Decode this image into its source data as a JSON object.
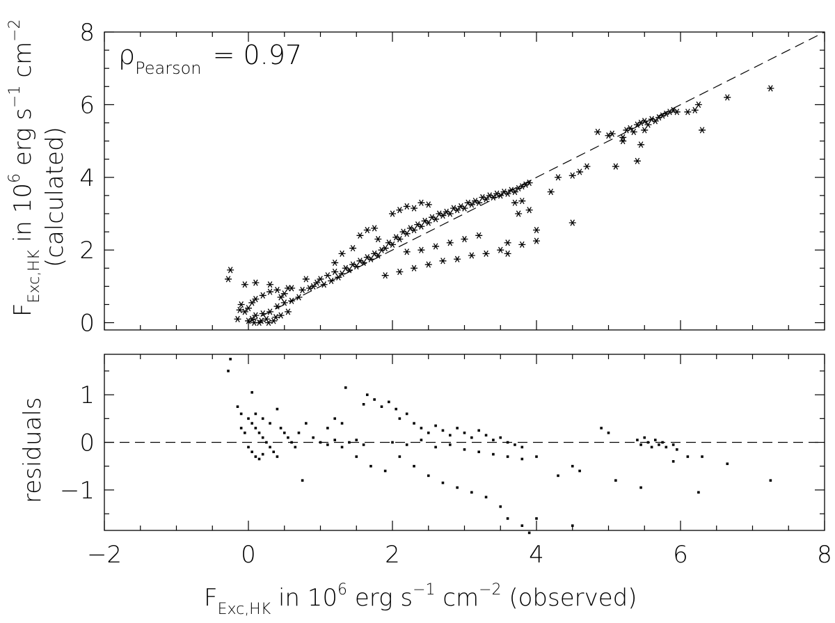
{
  "chart_data": [
    {
      "id": "top",
      "type": "scatter",
      "marker": "asterisk",
      "xlim": [
        -2,
        8
      ],
      "ylim": [
        -0.2,
        8
      ],
      "yticks": [
        0,
        2,
        4,
        6,
        8
      ],
      "reference_line": "y = x (dashed)",
      "ylabel": {
        "main": "F",
        "sub": "Exc,HK",
        "rest1": " in 10",
        "sup1": "6",
        "rest2": " erg s",
        "sup2": "−1",
        "rest3": " cm",
        "sup3": "−2",
        "line2": "(calculated)"
      },
      "annotation": {
        "symbol": "ρ",
        "sub": "Pearson",
        "text": " = 0.97"
      },
      "points": [
        [
          -0.25,
          1.45
        ],
        [
          -0.28,
          1.2
        ],
        [
          -0.05,
          1.05
        ],
        [
          0.1,
          1.1
        ],
        [
          0.3,
          1.05
        ],
        [
          0.6,
          0.95
        ],
        [
          0.0,
          0.05
        ],
        [
          0.05,
          0.1
        ],
        [
          0.1,
          0.2
        ],
        [
          0.15,
          0.0
        ],
        [
          0.2,
          0.25
        ],
        [
          0.25,
          0.1
        ],
        [
          0.3,
          0.3
        ],
        [
          0.35,
          0.05
        ],
        [
          0.4,
          0.45
        ],
        [
          0.45,
          0.2
        ],
        [
          0.5,
          0.55
        ],
        [
          0.55,
          0.3
        ],
        [
          -0.1,
          0.5
        ],
        [
          -0.05,
          0.3
        ],
        [
          0.0,
          0.4
        ],
        [
          0.05,
          0.55
        ],
        [
          0.1,
          0.65
        ],
        [
          0.2,
          0.75
        ],
        [
          0.3,
          0.85
        ],
        [
          0.4,
          0.9
        ],
        [
          0.45,
          0.7
        ],
        [
          0.5,
          0.8
        ],
        [
          0.55,
          0.95
        ],
        [
          0.6,
          0.6
        ],
        [
          -0.15,
          0.1
        ],
        [
          -0.12,
          0.35
        ],
        [
          0.08,
          0.0
        ],
        [
          0.18,
          0.05
        ],
        [
          0.28,
          0.0
        ],
        [
          0.38,
          0.15
        ],
        [
          0.7,
          0.7
        ],
        [
          0.75,
          0.9
        ],
        [
          0.8,
          1.2
        ],
        [
          0.85,
          0.95
        ],
        [
          0.9,
          1.0
        ],
        [
          0.95,
          1.1
        ],
        [
          1.0,
          1.2
        ],
        [
          1.05,
          1.05
        ],
        [
          1.1,
          1.3
        ],
        [
          1.15,
          1.15
        ],
        [
          1.2,
          1.4
        ],
        [
          1.25,
          1.25
        ],
        [
          1.3,
          1.35
        ],
        [
          1.35,
          1.5
        ],
        [
          1.4,
          1.45
        ],
        [
          1.45,
          1.6
        ],
        [
          1.5,
          1.55
        ],
        [
          1.55,
          1.7
        ],
        [
          1.6,
          1.65
        ],
        [
          1.65,
          1.8
        ],
        [
          1.7,
          1.75
        ],
        [
          1.75,
          1.9
        ],
        [
          1.8,
          1.85
        ],
        [
          1.85,
          2.0
        ],
        [
          1.2,
          1.65
        ],
        [
          1.3,
          1.9
        ],
        [
          1.45,
          2.05
        ],
        [
          1.55,
          2.4
        ],
        [
          1.65,
          2.55
        ],
        [
          1.75,
          2.6
        ],
        [
          1.8,
          2.3
        ],
        [
          1.9,
          2.05
        ],
        [
          1.95,
          2.2
        ],
        [
          2.0,
          2.15
        ],
        [
          2.05,
          2.35
        ],
        [
          2.1,
          2.3
        ],
        [
          2.15,
          2.5
        ],
        [
          2.2,
          2.45
        ],
        [
          2.25,
          2.6
        ],
        [
          2.3,
          2.55
        ],
        [
          2.35,
          2.7
        ],
        [
          2.4,
          2.65
        ],
        [
          2.45,
          2.8
        ],
        [
          2.5,
          2.75
        ],
        [
          2.55,
          2.9
        ],
        [
          2.6,
          2.85
        ],
        [
          2.65,
          3.0
        ],
        [
          2.7,
          2.95
        ],
        [
          2.75,
          3.05
        ],
        [
          2.8,
          3.0
        ],
        [
          2.85,
          3.15
        ],
        [
          2.9,
          3.1
        ],
        [
          2.95,
          3.2
        ],
        [
          3.0,
          3.15
        ],
        [
          3.05,
          3.3
        ],
        [
          3.1,
          3.25
        ],
        [
          3.15,
          3.35
        ],
        [
          3.2,
          3.3
        ],
        [
          3.25,
          3.45
        ],
        [
          3.3,
          3.4
        ],
        [
          3.35,
          3.5
        ],
        [
          3.4,
          3.45
        ],
        [
          3.45,
          3.55
        ],
        [
          3.5,
          3.5
        ],
        [
          3.55,
          3.6
        ],
        [
          3.6,
          3.55
        ],
        [
          3.65,
          3.65
        ],
        [
          3.7,
          3.6
        ],
        [
          3.75,
          3.7
        ],
        [
          3.8,
          3.75
        ],
        [
          3.85,
          3.8
        ],
        [
          3.9,
          3.85
        ],
        [
          2.0,
          3.0
        ],
        [
          2.1,
          3.1
        ],
        [
          2.2,
          3.2
        ],
        [
          2.3,
          3.15
        ],
        [
          2.4,
          3.3
        ],
        [
          2.5,
          3.25
        ],
        [
          2.2,
          1.95
        ],
        [
          2.4,
          2.0
        ],
        [
          2.6,
          2.1
        ],
        [
          2.8,
          2.2
        ],
        [
          3.0,
          2.3
        ],
        [
          3.2,
          2.4
        ],
        [
          2.5,
          1.6
        ],
        [
          2.7,
          1.7
        ],
        [
          2.9,
          1.75
        ],
        [
          3.1,
          1.85
        ],
        [
          3.3,
          1.9
        ],
        [
          3.5,
          2.0
        ],
        [
          2.1,
          1.4
        ],
        [
          2.3,
          1.5
        ],
        [
          1.9,
          1.3
        ],
        [
          3.6,
          1.9
        ],
        [
          3.6,
          2.2
        ],
        [
          3.8,
          2.15
        ],
        [
          4.0,
          2.55
        ],
        [
          4.0,
          2.25
        ],
        [
          4.2,
          3.6
        ],
        [
          4.3,
          4.0
        ],
        [
          4.5,
          4.05
        ],
        [
          4.6,
          4.15
        ],
        [
          4.7,
          4.3
        ],
        [
          4.5,
          2.75
        ],
        [
          3.9,
          3.1
        ],
        [
          3.7,
          3.3
        ],
        [
          3.8,
          3.35
        ],
        [
          3.75,
          3.0
        ],
        [
          4.85,
          5.25
        ],
        [
          5.0,
          5.15
        ],
        [
          5.05,
          5.2
        ],
        [
          5.1,
          4.3
        ],
        [
          5.2,
          5.1
        ],
        [
          5.25,
          5.3
        ],
        [
          5.3,
          5.35
        ],
        [
          5.35,
          5.25
        ],
        [
          5.4,
          5.45
        ],
        [
          5.45,
          5.5
        ],
        [
          5.5,
          5.55
        ],
        [
          5.55,
          5.45
        ],
        [
          5.6,
          5.6
        ],
        [
          5.65,
          5.55
        ],
        [
          5.7,
          5.65
        ],
        [
          5.75,
          5.7
        ],
        [
          5.8,
          5.75
        ],
        [
          5.85,
          5.8
        ],
        [
          5.9,
          5.85
        ],
        [
          5.95,
          5.8
        ],
        [
          5.45,
          4.9
        ],
        [
          5.4,
          4.45
        ],
        [
          5.5,
          5.3
        ],
        [
          6.1,
          5.8
        ],
        [
          6.2,
          5.85
        ],
        [
          6.3,
          5.3
        ],
        [
          6.25,
          6.0
        ],
        [
          6.65,
          6.2
        ],
        [
          7.25,
          6.45
        ],
        [
          5.2,
          5.0
        ]
      ]
    },
    {
      "id": "bottom",
      "type": "scatter",
      "marker": "small-x",
      "xlim": [
        -2,
        8
      ],
      "ylim": [
        -1.85,
        1.85
      ],
      "yticks": [
        -1,
        0,
        1
      ],
      "ytick_labels": [
        "−1",
        "0",
        "1"
      ],
      "xticks": [
        -2,
        0,
        2,
        4,
        6,
        8
      ],
      "xtick_labels": [
        "−2",
        "0",
        "2",
        "4",
        "6",
        "8"
      ],
      "reference_line": "y = 0 (dashed)",
      "ylabel": "residuals",
      "xlabel": {
        "main": "F",
        "sub": "Exc,HK",
        "rest1": " in 10",
        "sup1": "6",
        "rest2": " erg s",
        "sup2": "−1",
        "rest3": " cm",
        "sup3": "−2",
        "rest4": " (observed)"
      },
      "points": [
        [
          -0.25,
          1.75
        ],
        [
          -0.28,
          1.5
        ],
        [
          0.05,
          1.05
        ],
        [
          1.35,
          1.15
        ],
        [
          -0.15,
          0.75
        ],
        [
          -0.1,
          0.6
        ],
        [
          0.0,
          0.5
        ],
        [
          0.05,
          0.4
        ],
        [
          0.1,
          0.3
        ],
        [
          0.15,
          0.2
        ],
        [
          0.2,
          0.1
        ],
        [
          0.25,
          0.0
        ],
        [
          0.3,
          -0.1
        ],
        [
          0.35,
          -0.2
        ],
        [
          0.4,
          -0.3
        ],
        [
          0.0,
          -0.1
        ],
        [
          0.05,
          -0.2
        ],
        [
          0.1,
          -0.3
        ],
        [
          0.15,
          -0.35
        ],
        [
          0.2,
          -0.25
        ],
        [
          -0.1,
          0.3
        ],
        [
          -0.05,
          0.2
        ],
        [
          0.1,
          0.6
        ],
        [
          0.2,
          0.5
        ],
        [
          0.3,
          0.4
        ],
        [
          0.4,
          0.7
        ],
        [
          0.45,
          0.3
        ],
        [
          0.5,
          0.2
        ],
        [
          0.55,
          0.1
        ],
        [
          0.6,
          0.0
        ],
        [
          0.65,
          -0.1
        ],
        [
          0.7,
          0.2
        ],
        [
          0.8,
          0.4
        ],
        [
          0.75,
          -0.8
        ],
        [
          0.9,
          0.1
        ],
        [
          1.0,
          0.0
        ],
        [
          1.1,
          -0.05
        ],
        [
          1.2,
          0.05
        ],
        [
          1.3,
          -0.1
        ],
        [
          1.4,
          0.0
        ],
        [
          1.5,
          0.05
        ],
        [
          1.6,
          -0.05
        ],
        [
          1.1,
          0.3
        ],
        [
          1.2,
          0.5
        ],
        [
          1.3,
          0.4
        ],
        [
          1.5,
          -0.3
        ],
        [
          1.7,
          -0.5
        ],
        [
          1.9,
          -0.6
        ],
        [
          1.6,
          0.8
        ],
        [
          1.65,
          1.0
        ],
        [
          1.75,
          0.9
        ],
        [
          1.85,
          0.75
        ],
        [
          1.95,
          0.85
        ],
        [
          2.05,
          0.7
        ],
        [
          2.1,
          0.5
        ],
        [
          2.2,
          0.6
        ],
        [
          2.3,
          0.4
        ],
        [
          2.4,
          0.3
        ],
        [
          2.5,
          0.2
        ],
        [
          2.6,
          0.35
        ],
        [
          2.7,
          0.25
        ],
        [
          2.8,
          0.15
        ],
        [
          2.9,
          0.3
        ],
        [
          3.0,
          0.2
        ],
        [
          3.1,
          0.1
        ],
        [
          3.2,
          0.25
        ],
        [
          3.3,
          0.15
        ],
        [
          3.4,
          0.05
        ],
        [
          3.5,
          0.1
        ],
        [
          3.6,
          0.0
        ],
        [
          3.7,
          -0.05
        ],
        [
          3.8,
          -0.1
        ],
        [
          2.0,
          0.0
        ],
        [
          2.2,
          -0.05
        ],
        [
          2.4,
          0.05
        ],
        [
          2.6,
          -0.1
        ],
        [
          2.8,
          -0.05
        ],
        [
          3.0,
          -0.15
        ],
        [
          3.2,
          -0.2
        ],
        [
          3.4,
          -0.25
        ],
        [
          3.6,
          -0.3
        ],
        [
          3.8,
          -0.35
        ],
        [
          4.0,
          -0.3
        ],
        [
          2.1,
          -0.3
        ],
        [
          2.3,
          -0.5
        ],
        [
          2.5,
          -0.7
        ],
        [
          2.7,
          -0.85
        ],
        [
          2.9,
          -0.95
        ],
        [
          3.1,
          -1.05
        ],
        [
          3.3,
          -1.15
        ],
        [
          3.5,
          -1.35
        ],
        [
          3.6,
          -1.6
        ],
        [
          3.8,
          -1.75
        ],
        [
          4.0,
          -1.6
        ],
        [
          4.5,
          -1.75
        ],
        [
          3.9,
          -1.9
        ],
        [
          4.3,
          -0.7
        ],
        [
          4.5,
          -0.5
        ],
        [
          4.6,
          -0.6
        ],
        [
          4.9,
          0.3
        ],
        [
          5.0,
          0.2
        ],
        [
          5.1,
          -0.8
        ],
        [
          5.4,
          0.05
        ],
        [
          5.45,
          -0.05
        ],
        [
          5.5,
          0.1
        ],
        [
          5.55,
          0.0
        ],
        [
          5.6,
          -0.1
        ],
        [
          5.65,
          0.05
        ],
        [
          5.7,
          -0.05
        ],
        [
          5.75,
          0.0
        ],
        [
          5.8,
          -0.1
        ],
        [
          5.9,
          -0.05
        ],
        [
          5.95,
          -0.15
        ],
        [
          5.45,
          -0.95
        ],
        [
          5.9,
          -0.4
        ],
        [
          6.1,
          -0.3
        ],
        [
          6.3,
          -0.3
        ],
        [
          6.25,
          -1.05
        ],
        [
          6.65,
          -0.45
        ],
        [
          7.25,
          -0.8
        ]
      ]
    }
  ]
}
